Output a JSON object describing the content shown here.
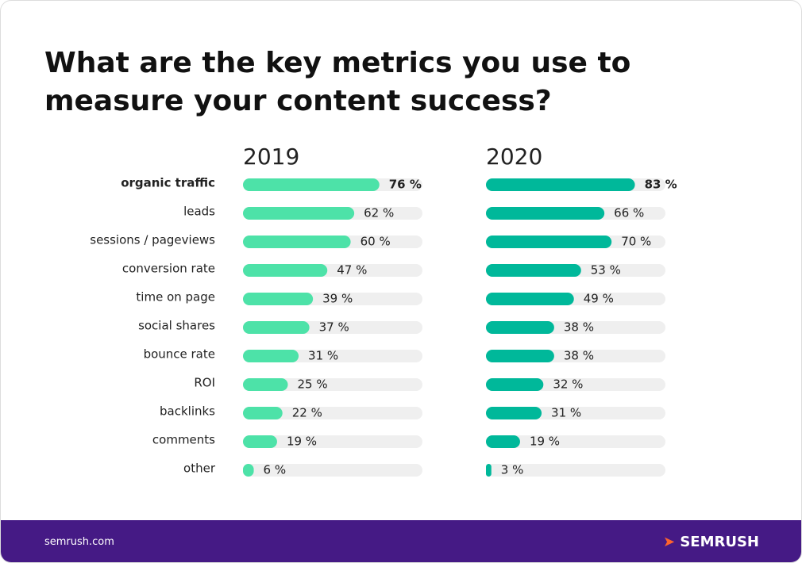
{
  "chart_data": {
    "type": "bar",
    "title": "What are the key metrics you use to measure your content success?",
    "categories": [
      "organic traffic",
      "leads",
      "sessions / pageviews",
      "conversion rate",
      "time on page",
      "social shares",
      "bounce rate",
      "ROI",
      "backlinks",
      "comments",
      "other"
    ],
    "xlim": [
      0,
      100
    ],
    "series": [
      {
        "name": "2019",
        "color": "#4de2a8",
        "values": [
          76,
          62,
          60,
          47,
          39,
          37,
          31,
          25,
          22,
          19,
          6
        ],
        "value_labels": [
          "76 %",
          "62 %",
          "60 %",
          "47 %",
          "39 %",
          "37 %",
          "31 %",
          "25 %",
          "22 %",
          "19 %",
          "6 %"
        ]
      },
      {
        "name": "2020",
        "color": "#00b89a",
        "values": [
          83,
          66,
          70,
          53,
          49,
          38,
          38,
          32,
          31,
          19,
          3
        ],
        "value_labels": [
          "83 %",
          "66 %",
          "70 %",
          "53 %",
          "49 %",
          "38 %",
          "38 %",
          "32 %",
          "31 %",
          "19 %",
          "3 %"
        ]
      }
    ]
  },
  "footer": {
    "source": "semrush.com",
    "brand": "SEMRUSH"
  }
}
